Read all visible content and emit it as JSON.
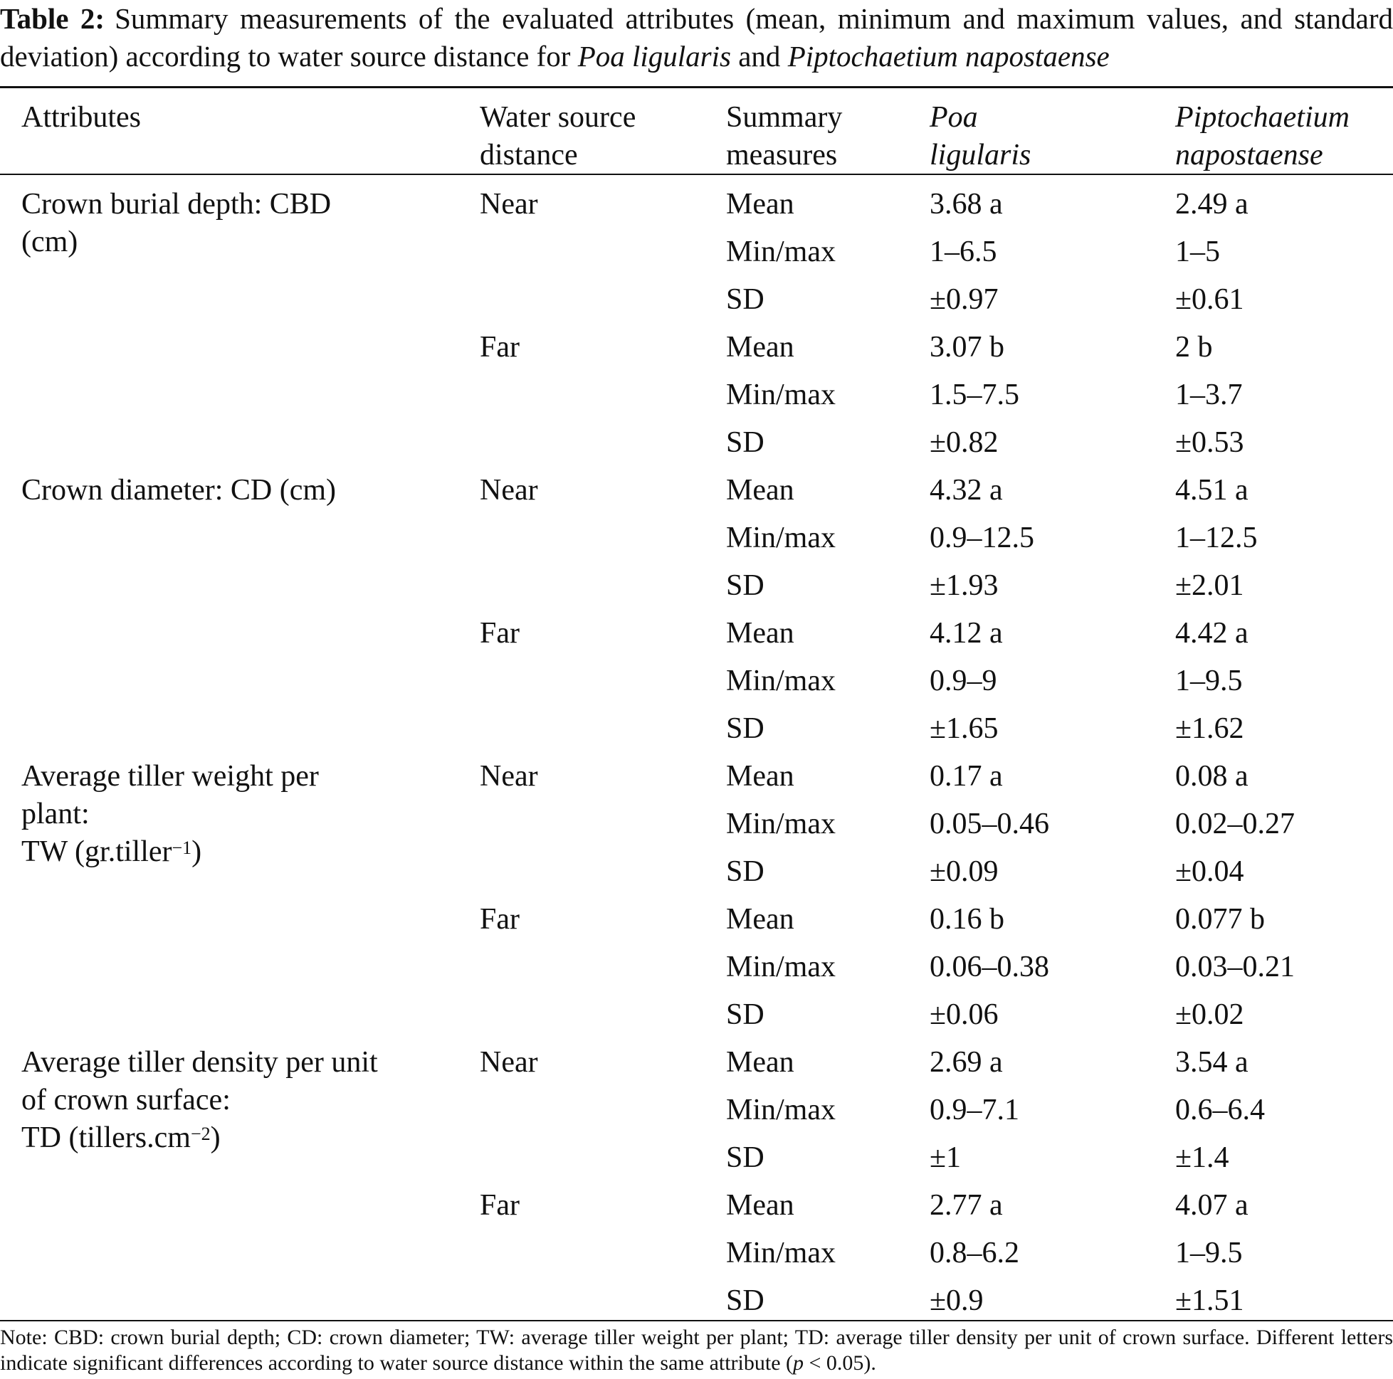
{
  "caption": {
    "label": "Table 2:",
    "text_a": "Summary measurements of the evaluated attributes (mean, minimum and maximum values, and standard deviation) according to water source distance for ",
    "species_1": "Poa ligularis",
    "and_word": " and ",
    "species_2": "Piptochaetium napostaense"
  },
  "headers": {
    "attributes": "Attributes",
    "distance_1": "Water source",
    "distance_2": "distance",
    "measures_1": "Summary",
    "measures_2": "measures",
    "poa_1": "Poa",
    "poa_2": "ligularis",
    "pip_1": "Piptochaetium",
    "pip_2": "napostaense"
  },
  "attributes": {
    "cbd_1": "Crown burial depth: CBD",
    "cbd_2": "(cm)",
    "cd": "Crown diameter: CD (cm)",
    "tw_1": "Average tiller weight per",
    "tw_2": "plant:",
    "tw_3": "TW (gr.tiller",
    "tw_exp": "−1",
    "tw_close": ")",
    "td_1": "Average tiller density per unit",
    "td_2": "of crown surface:",
    "td_3": "TD (tillers.cm",
    "td_exp": "−2",
    "td_close": ")"
  },
  "rows": [
    {
      "distance": "Near",
      "measure": "Mean",
      "poa": "3.68 a",
      "pip": "2.49 a"
    },
    {
      "distance": "",
      "measure": "Min/max",
      "poa": "1–6.5",
      "pip": "1–5"
    },
    {
      "distance": "",
      "measure": "SD",
      "poa": "±0.97",
      "pip": "±0.61"
    },
    {
      "distance": "Far",
      "measure": "Mean",
      "poa": "3.07 b",
      "pip": "2 b"
    },
    {
      "distance": "",
      "measure": "Min/max",
      "poa": "1.5–7.5",
      "pip": "1–3.7"
    },
    {
      "distance": "",
      "measure": "SD",
      "poa": "±0.82",
      "pip": "±0.53"
    },
    {
      "distance": "Near",
      "measure": "Mean",
      "poa": "4.32 a",
      "pip": "4.51 a"
    },
    {
      "distance": "",
      "measure": "Min/max",
      "poa": "0.9–12.5",
      "pip": "1–12.5"
    },
    {
      "distance": "",
      "measure": "SD",
      "poa": "±1.93",
      "pip": "±2.01"
    },
    {
      "distance": "Far",
      "measure": "Mean",
      "poa": "4.12 a",
      "pip": "4.42 a"
    },
    {
      "distance": "",
      "measure": "Min/max",
      "poa": "0.9–9",
      "pip": "1–9.5"
    },
    {
      "distance": "",
      "measure": "SD",
      "poa": "±1.65",
      "pip": "±1.62"
    },
    {
      "distance": "Near",
      "measure": "Mean",
      "poa": "0.17 a",
      "pip": "0.08 a"
    },
    {
      "distance": "",
      "measure": "Min/max",
      "poa": "0.05–0.46",
      "pip": "0.02–0.27"
    },
    {
      "distance": "",
      "measure": "SD",
      "poa": "±0.09",
      "pip": "±0.04"
    },
    {
      "distance": "Far",
      "measure": "Mean",
      "poa": "0.16 b",
      "pip": "0.077 b"
    },
    {
      "distance": "",
      "measure": "Min/max",
      "poa": "0.06–0.38",
      "pip": "0.03–0.21"
    },
    {
      "distance": "",
      "measure": "SD",
      "poa": "±0.06",
      "pip": "±0.02"
    },
    {
      "distance": "Near",
      "measure": "Mean",
      "poa": "2.69 a",
      "pip": "3.54 a"
    },
    {
      "distance": "",
      "measure": "Min/max",
      "poa": "0.9–7.1",
      "pip": "0.6–6.4"
    },
    {
      "distance": "",
      "measure": "SD",
      "poa": "±1",
      "pip": "±1.4"
    },
    {
      "distance": "Far",
      "measure": "Mean",
      "poa": "2.77 a",
      "pip": "4.07 a"
    },
    {
      "distance": "",
      "measure": "Min/max",
      "poa": "0.8–6.2",
      "pip": "1–9.5"
    },
    {
      "distance": "",
      "measure": "SD",
      "poa": "±0.9",
      "pip": "±1.51"
    }
  ],
  "note": {
    "text_a": "Note: CBD: crown burial depth; CD: crown diameter; TW: average tiller weight per plant; TD: average tiller density per unit of crown surface. Different letters indicate significant differences according to water source distance within the same attribute (",
    "p": "p",
    "text_b": " < 0.05)."
  }
}
